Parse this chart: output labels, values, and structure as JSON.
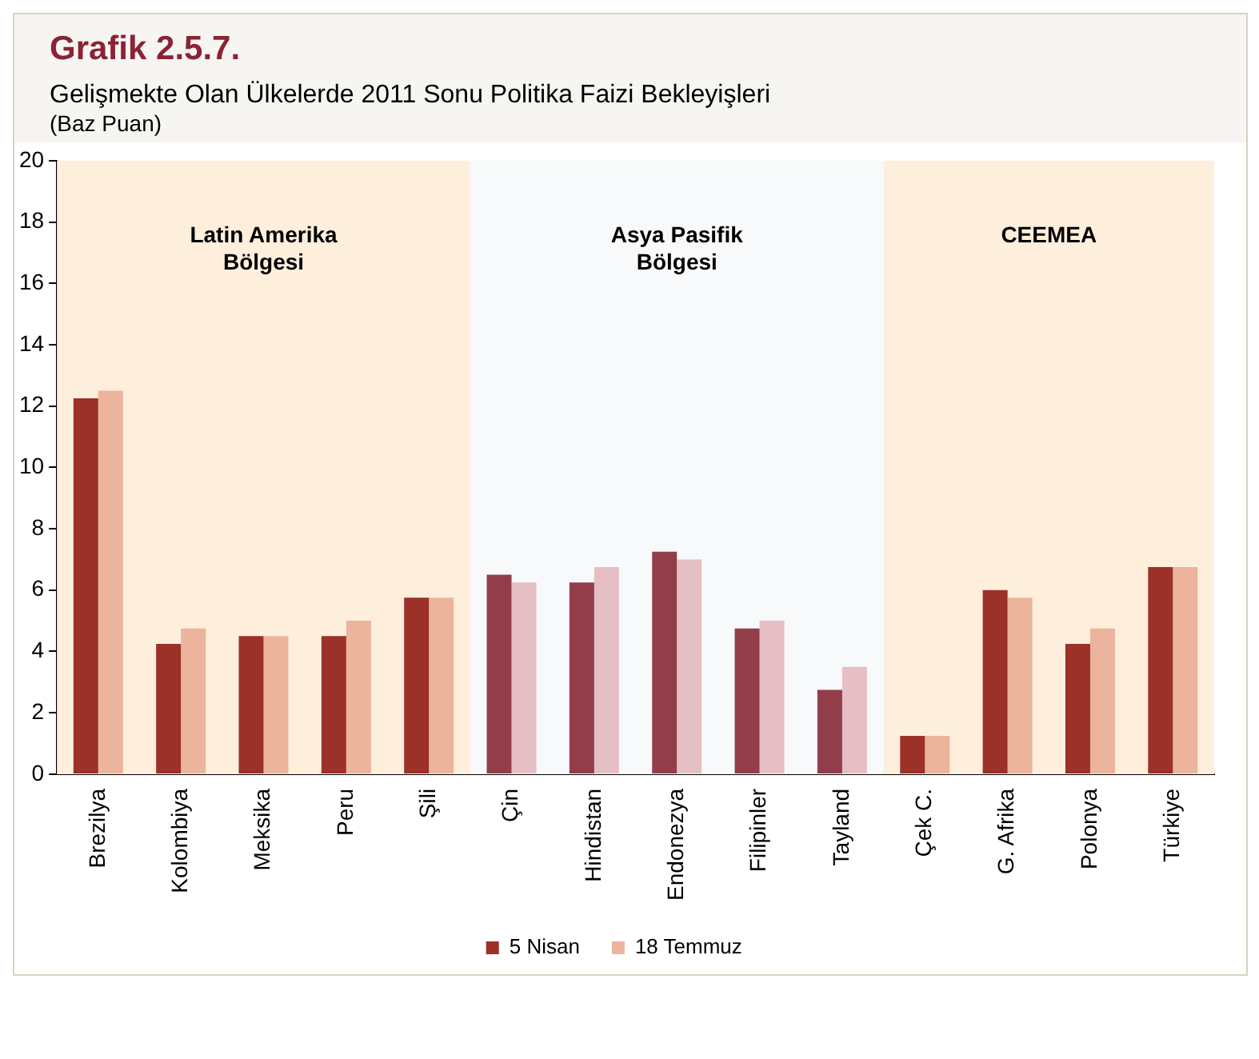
{
  "chart_data": {
    "type": "bar",
    "title": "Grafik 2.5.7.",
    "subtitle": "Gelişmekte Olan Ülkelerde 2011 Sonu Politika Faizi Bekleyişleri",
    "annotations": [
      "(Baz Puan)"
    ],
    "categories": [
      "Brezilya",
      "Kolombiya",
      "Meksika",
      "Peru",
      "Şili",
      "Çin",
      "Hindistan",
      "Endonezya",
      "Filipinler",
      "Tayland",
      "Çek C.",
      "G. Afrika",
      "Polonya",
      "Türkiye"
    ],
    "series": [
      {
        "name": "5 Nisan",
        "color": "#9b3128",
        "colors": [
          "#9b3128",
          "#9b3128",
          "#9b3128",
          "#9b3128",
          "#9b3128",
          "#933d4b",
          "#933d4b",
          "#933d4b",
          "#933d4b",
          "#933d4b",
          "#9b3128",
          "#9b3128",
          "#9b3128",
          "#9b3128"
        ],
        "values": [
          12.25,
          4.25,
          4.5,
          4.5,
          5.75,
          6.5,
          6.25,
          7.25,
          4.75,
          2.75,
          1.25,
          6.0,
          4.25,
          6.75
        ]
      },
      {
        "name": "18 Temmuz",
        "color": "#ecb49c",
        "colors": [
          "#ecb49c",
          "#ecb49c",
          "#ecb49c",
          "#ecb49c",
          "#ecb49c",
          "#e6bfc4",
          "#e6bfc4",
          "#e6bfc4",
          "#e6bfc4",
          "#e6bfc4",
          "#ecb49c",
          "#ecb49c",
          "#ecb49c",
          "#ecb49c"
        ],
        "values": [
          12.5,
          4.75,
          4.5,
          5.0,
          5.75,
          6.25,
          6.75,
          7.0,
          5.0,
          3.5,
          1.25,
          5.75,
          4.75,
          6.75
        ]
      }
    ],
    "bands": [
      {
        "axis": "x",
        "from": "Brezilya",
        "to": "Şili",
        "label": "Latin Amerika Bölgesi",
        "color": "#fdefdc"
      },
      {
        "axis": "x",
        "from": "Çin",
        "to": "Tayland",
        "label": "Asya Pasifik Bölgesi",
        "color": "#f8f9fb"
      },
      {
        "axis": "x",
        "from": "Çek C.",
        "to": "Türkiye",
        "label": "CEEMEA",
        "color": "#fdefdc"
      }
    ],
    "ylim": [
      0,
      20
    ],
    "yticks": [
      0,
      2,
      4,
      6,
      8,
      10,
      12,
      14,
      16,
      18,
      20
    ],
    "grid": false,
    "legend": "bottom"
  }
}
